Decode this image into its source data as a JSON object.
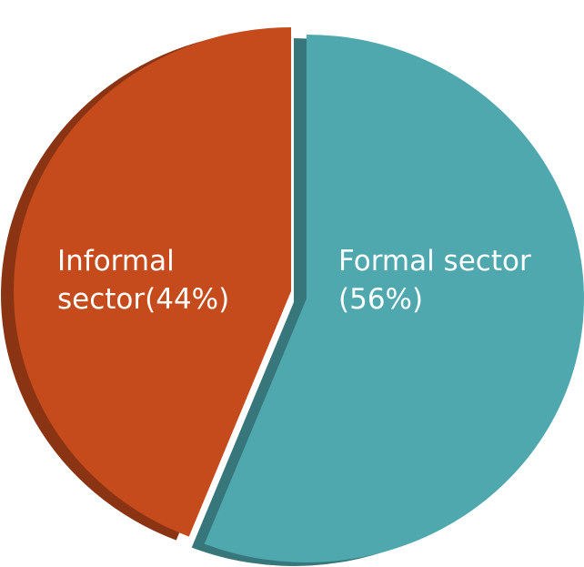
{
  "chart_data": {
    "type": "pie",
    "values": [
      56,
      44
    ],
    "value_labels": [
      "Formal sector (56%)",
      "Informal sector(44%)"
    ],
    "colors": [
      "#4ea8ae",
      "#c54a1c"
    ]
  }
}
